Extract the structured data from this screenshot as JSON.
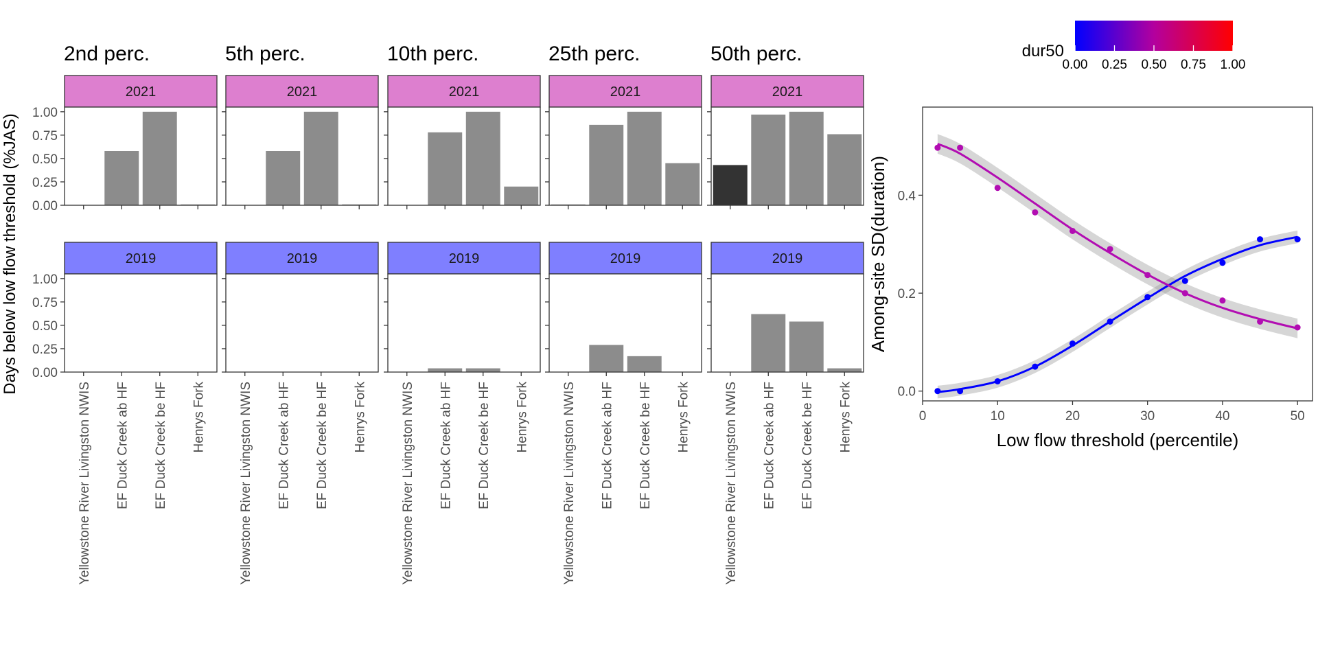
{
  "chart_data": [
    {
      "type": "bar",
      "facet_titles": [
        "2nd perc.",
        "5th perc.",
        "10th perc.",
        "25th perc.",
        "50th perc."
      ],
      "rows": [
        "2021",
        "2019"
      ],
      "row_colors": {
        "2021": "#dd7fcf",
        "2019": "#7f7fff"
      },
      "ylabel": "Days below low flow threshold (%JAS)",
      "ylim": [
        0,
        1.05
      ],
      "yticks": [
        0.0,
        0.25,
        0.5,
        0.75,
        1.0
      ],
      "ytick_labels": [
        "0.00",
        "0.25",
        "0.50",
        "0.75",
        "1.00"
      ],
      "categories": [
        "Yellowstone River Livingston NWIS",
        "EF Duck Creek ab HF",
        "EF Duck Creek be HF",
        "Henrys Fork"
      ],
      "bar_colors": {
        "default": "#8c8c8c",
        "highlight": "#333333"
      },
      "panels": [
        {
          "perc": "2nd perc.",
          "year": "2021",
          "values": [
            null,
            0.58,
            1.0,
            0.003
          ],
          "highlight": []
        },
        {
          "perc": "5th perc.",
          "year": "2021",
          "values": [
            null,
            0.58,
            1.0,
            0.003
          ],
          "highlight": []
        },
        {
          "perc": "10th perc.",
          "year": "2021",
          "values": [
            null,
            0.78,
            1.0,
            0.2
          ],
          "highlight": []
        },
        {
          "perc": "25th perc.",
          "year": "2021",
          "values": [
            0.003,
            0.86,
            1.0,
            0.45
          ],
          "highlight": []
        },
        {
          "perc": "50th perc.",
          "year": "2021",
          "values": [
            0.43,
            0.97,
            1.0,
            0.76
          ],
          "highlight": [
            0
          ]
        },
        {
          "perc": "2nd perc.",
          "year": "2019",
          "values": [
            null,
            null,
            null,
            null
          ],
          "highlight": []
        },
        {
          "perc": "5th perc.",
          "year": "2019",
          "values": [
            null,
            null,
            null,
            null
          ],
          "highlight": []
        },
        {
          "perc": "10th perc.",
          "year": "2019",
          "values": [
            null,
            0.04,
            0.04,
            null
          ],
          "highlight": []
        },
        {
          "perc": "25th perc.",
          "year": "2019",
          "values": [
            null,
            0.29,
            0.17,
            null
          ],
          "highlight": []
        },
        {
          "perc": "50th perc.",
          "year": "2019",
          "values": [
            null,
            0.62,
            0.54,
            0.04
          ],
          "highlight": []
        }
      ]
    },
    {
      "type": "scatter",
      "xlabel": "Low flow threshold (percentile)",
      "ylabel": "Among-site SD(duration)",
      "xlim": [
        0,
        52
      ],
      "ylim": [
        -0.02,
        0.58
      ],
      "xticks": [
        0,
        10,
        20,
        30,
        40,
        50
      ],
      "yticks": [
        0.0,
        0.2,
        0.4
      ],
      "ytick_labels": [
        "0.0",
        "0.2",
        "0.4"
      ],
      "legend": {
        "title": "dur50",
        "position": "top-right",
        "labels": [
          "0.00",
          "0.25",
          "0.50",
          "0.75",
          "1.00"
        ],
        "low_color": "#0000ff",
        "high_color": "#ff0000"
      },
      "series": [
        {
          "dur50": 0.0,
          "color": "#0000ff",
          "points": [
            [
              2,
              0.0
            ],
            [
              5,
              0.0
            ],
            [
              10,
              0.02
            ],
            [
              15,
              0.05
            ],
            [
              20,
              0.097
            ],
            [
              25,
              0.142
            ],
            [
              30,
              0.192
            ],
            [
              35,
              0.225
            ],
            [
              40,
              0.262
            ],
            [
              45,
              0.31
            ],
            [
              50,
              0.31
            ]
          ],
          "smooth": [
            [
              2,
              -0.002
            ],
            [
              5,
              0.004
            ],
            [
              10,
              0.02
            ],
            [
              15,
              0.05
            ],
            [
              20,
              0.093
            ],
            [
              25,
              0.142
            ],
            [
              30,
              0.19
            ],
            [
              35,
              0.235
            ],
            [
              40,
              0.27
            ],
            [
              45,
              0.298
            ],
            [
              50,
              0.315
            ]
          ],
          "band": 0.013
        },
        {
          "dur50": 0.43,
          "color": "#b20db2",
          "points": [
            [
              2,
              0.497
            ],
            [
              5,
              0.497
            ],
            [
              10,
              0.415
            ],
            [
              15,
              0.365
            ],
            [
              20,
              0.327
            ],
            [
              25,
              0.29
            ],
            [
              30,
              0.237
            ],
            [
              35,
              0.2
            ],
            [
              40,
              0.185
            ],
            [
              45,
              0.142
            ],
            [
              50,
              0.13
            ]
          ],
          "smooth": [
            [
              2,
              0.505
            ],
            [
              5,
              0.485
            ],
            [
              10,
              0.436
            ],
            [
              15,
              0.383
            ],
            [
              20,
              0.33
            ],
            [
              25,
              0.282
            ],
            [
              30,
              0.238
            ],
            [
              35,
              0.2
            ],
            [
              40,
              0.17
            ],
            [
              45,
              0.147
            ],
            [
              50,
              0.128
            ]
          ],
          "band": 0.02
        }
      ]
    }
  ]
}
